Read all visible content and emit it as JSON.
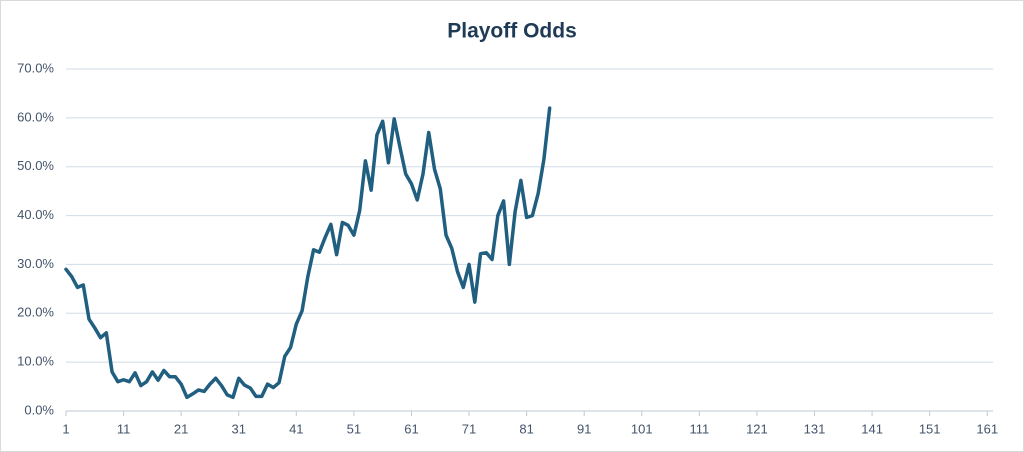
{
  "chart_data": {
    "type": "line",
    "title": "Playoff Odds",
    "x": [
      1,
      2,
      3,
      4,
      5,
      6,
      7,
      8,
      9,
      10,
      11,
      12,
      13,
      14,
      15,
      16,
      17,
      18,
      19,
      20,
      21,
      22,
      23,
      24,
      25,
      26,
      27,
      28,
      29,
      30,
      31,
      32,
      33,
      34,
      35,
      36,
      37,
      38,
      39,
      40,
      41,
      42,
      43,
      44,
      45,
      46,
      47,
      48,
      49,
      50,
      51,
      52,
      53,
      54,
      55,
      56,
      57,
      58,
      59,
      60,
      61,
      62,
      63,
      64,
      65,
      66,
      67,
      68,
      69,
      70,
      71,
      72,
      73,
      74,
      75,
      76,
      77,
      78,
      79,
      80,
      81,
      82,
      83,
      84,
      85
    ],
    "series": [
      {
        "name": "Playoff Odds",
        "color": "#215f80",
        "values": [
          29,
          27.5,
          25.3,
          25.8,
          18.8,
          17,
          15,
          16,
          8,
          6,
          6.4,
          6,
          7.8,
          5.2,
          6,
          8,
          6.3,
          8.3,
          7,
          7,
          5.5,
          2.8,
          3.5,
          4.3,
          4,
          5.5,
          6.7,
          5.2,
          3.3,
          2.8,
          6.7,
          5.3,
          4.7,
          3,
          3,
          5.5,
          4.8,
          5.8,
          11.2,
          13,
          17.8,
          20.5,
          27.5,
          33,
          32.5,
          35.5,
          38.2,
          32,
          38.6,
          38,
          36,
          41,
          51.2,
          45.2,
          56.5,
          59.3,
          50.8,
          59.8,
          54,
          48.5,
          46.5,
          43.2,
          48.5,
          57,
          49.5,
          45.5,
          36,
          33.3,
          28.5,
          25.3,
          30,
          22.3,
          32.2,
          32.4,
          31,
          40,
          43,
          30,
          40.8,
          47.2,
          39.6,
          40,
          44.5,
          51.5,
          62
        ]
      }
    ],
    "xlim": [
      1,
      162
    ],
    "xticks": [
      1,
      11,
      21,
      31,
      41,
      51,
      61,
      71,
      81,
      91,
      101,
      111,
      121,
      131,
      141,
      151,
      161
    ],
    "ylim": [
      0,
      70
    ],
    "yticks": [
      {
        "value": 0,
        "label": "0.0%"
      },
      {
        "value": 10,
        "label": "10.0%"
      },
      {
        "value": 20,
        "label": "20.0%"
      },
      {
        "value": 30,
        "label": "30.0%"
      },
      {
        "value": 40,
        "label": "40.0%"
      },
      {
        "value": 50,
        "label": "50.0%"
      },
      {
        "value": 60,
        "label": "60.0%"
      },
      {
        "value": 70,
        "label": "70.0%"
      }
    ],
    "grid": true
  }
}
